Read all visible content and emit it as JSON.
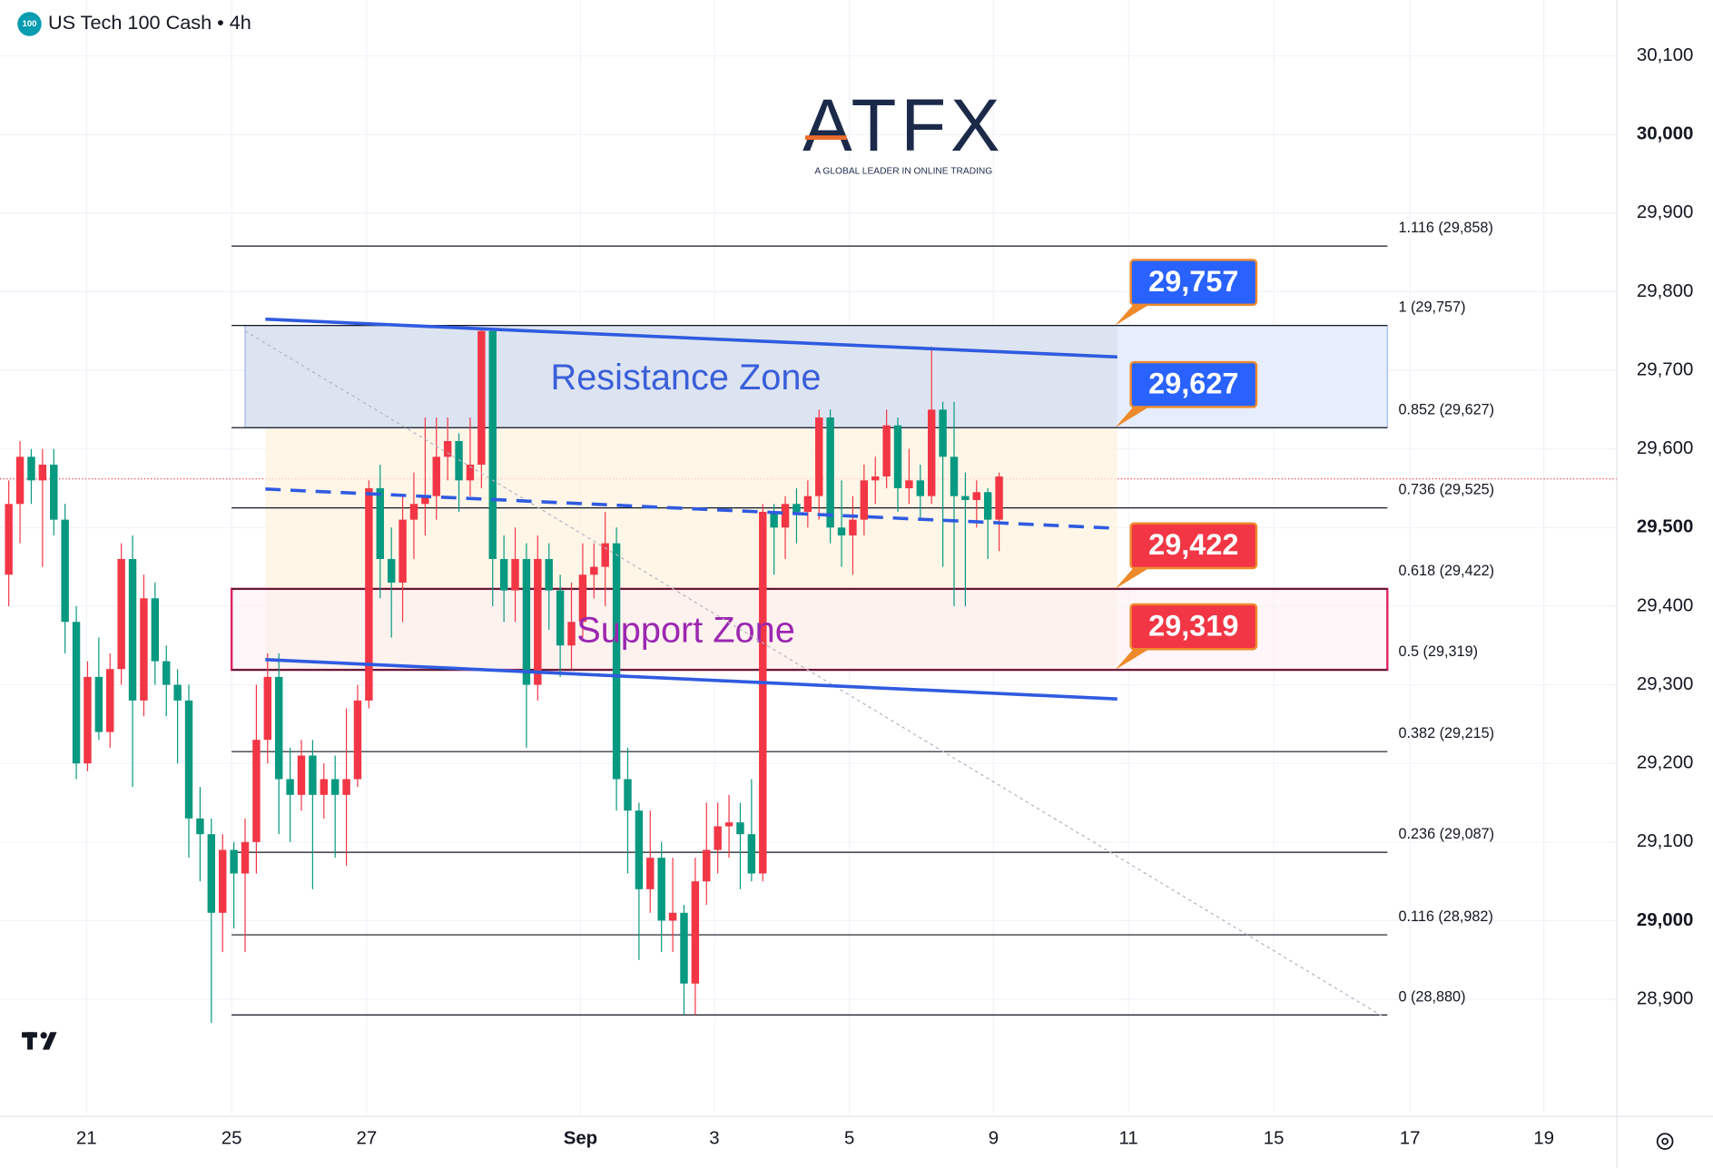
{
  "header": {
    "icon": "100",
    "title": "US Tech 100 Cash • 4h"
  },
  "logo": {
    "brand": "ATFX",
    "tagline": "A GLOBAL LEADER IN ONLINE TRADING"
  },
  "chart_data": {
    "type": "candlestick",
    "up_color": "#f23645",
    "down_color": "#089981",
    "grid": true,
    "open": [
      29440,
      29530,
      29590,
      29560,
      29580,
      29510,
      29380,
      29200,
      29310,
      29240,
      29320,
      29460,
      29280,
      29410,
      29330,
      29300,
      29280,
      29130,
      29110,
      29010,
      29090,
      29060,
      29100,
      29230,
      29310,
      29180,
      29160,
      29210,
      29160,
      29180,
      29160,
      29180,
      29280,
      29550,
      29460,
      29430,
      29510,
      29530,
      29540,
      29590,
      29610,
      29560,
      29580,
      29750,
      29460,
      29420,
      29460,
      29300,
      29460,
      29420,
      29350,
      29380,
      29440,
      29450,
      29480,
      29180,
      29140,
      29040,
      29080,
      29000,
      29010,
      28920,
      29050,
      29090,
      29120,
      29125,
      29110,
      29060,
      29520,
      29500,
      29530,
      29520,
      29540,
      29640,
      29500,
      29490,
      29510,
      29560,
      29565,
      29630,
      29550,
      29560,
      29540,
      29650,
      29590,
      29540,
      29535,
      29545,
      29510
    ],
    "high": [
      29560,
      29610,
      29600,
      29600,
      29600,
      29530,
      29400,
      29330,
      29360,
      29340,
      29480,
      29490,
      29440,
      29430,
      29350,
      29320,
      29300,
      29170,
      29130,
      29110,
      29100,
      29130,
      29300,
      29340,
      29340,
      29220,
      29230,
      29230,
      29200,
      29210,
      29270,
      29300,
      29560,
      29580,
      29500,
      29540,
      29570,
      29640,
      29640,
      29640,
      29620,
      29640,
      29755,
      29750,
      29490,
      29500,
      29480,
      29490,
      29480,
      29440,
      29430,
      29480,
      29480,
      29520,
      29500,
      29220,
      29150,
      29140,
      29100,
      29080,
      29020,
      29080,
      29150,
      29150,
      29160,
      29150,
      29180,
      29530,
      29530,
      29540,
      29550,
      29560,
      29650,
      29650,
      29560,
      29540,
      29580,
      29590,
      29650,
      29640,
      29600,
      29580,
      29730,
      29660,
      29660,
      29570,
      29560,
      29550,
      29570
    ],
    "low": [
      29400,
      29480,
      29530,
      29450,
      29490,
      29340,
      29180,
      29190,
      29230,
      29220,
      29300,
      29170,
      29260,
      29300,
      29260,
      29200,
      29080,
      29050,
      28870,
      28960,
      28990,
      28960,
      29060,
      29200,
      29110,
      29100,
      29140,
      29040,
      29130,
      29080,
      29070,
      29170,
      29270,
      29410,
      29360,
      29380,
      29460,
      29490,
      29510,
      29560,
      29520,
      29540,
      29550,
      29400,
      29380,
      29380,
      29220,
      29280,
      29370,
      29310,
      29320,
      29360,
      29410,
      29400,
      29140,
      29060,
      28950,
      29010,
      28960,
      28960,
      28880,
      28880,
      29020,
      29060,
      29080,
      29040,
      29050,
      29050,
      29440,
      29460,
      29480,
      29500,
      29510,
      29480,
      29450,
      29440,
      29490,
      29530,
      29550,
      29520,
      29530,
      29510,
      29530,
      29450,
      29400,
      29400,
      29500,
      29460,
      29470
    ],
    "close": [
      29530,
      29590,
      29560,
      29580,
      29510,
      29380,
      29200,
      29310,
      29240,
      29320,
      29460,
      29280,
      29410,
      29330,
      29300,
      29280,
      29130,
      29110,
      29010,
      29090,
      29060,
      29100,
      29230,
      29310,
      29180,
      29160,
      29210,
      29160,
      29180,
      29160,
      29180,
      29280,
      29550,
      29460,
      29430,
      29510,
      29530,
      29540,
      29590,
      29610,
      29560,
      29580,
      29750,
      29460,
      29420,
      29460,
      29300,
      29460,
      29420,
      29350,
      29380,
      29440,
      29450,
      29480,
      29180,
      29140,
      29040,
      29080,
      29000,
      29010,
      28920,
      29050,
      29090,
      29120,
      29125,
      29110,
      29060,
      29520,
      29500,
      29530,
      29520,
      29540,
      29640,
      29500,
      29490,
      29510,
      29560,
      29565,
      29630,
      29550,
      29560,
      29540,
      29650,
      29590,
      29540,
      29535,
      29545,
      29510,
      29565
    ],
    "xlim": [
      -0.78,
      142.9
    ],
    "xticks": [
      {
        "value": 6.9,
        "label": "21"
      },
      {
        "value": 19.8,
        "label": "25"
      },
      {
        "value": 31.8,
        "label": "27"
      },
      {
        "value": 50.8,
        "label": "Sep"
      },
      {
        "value": 62.7,
        "label": "3"
      },
      {
        "value": 74.7,
        "label": "5"
      },
      {
        "value": 87.5,
        "label": "9"
      },
      {
        "value": 99.5,
        "label": "11"
      },
      {
        "value": 112.4,
        "label": "15"
      },
      {
        "value": 124.5,
        "label": "17"
      },
      {
        "value": 136.4,
        "label": "19"
      }
    ],
    "ylim": [
      28754,
      30171
    ],
    "yticks": [
      {
        "value": 30100,
        "label": "30,100"
      },
      {
        "value": 30000,
        "label": "30,000"
      },
      {
        "value": 29900,
        "label": "29,900"
      },
      {
        "value": 29800,
        "label": "29,800"
      },
      {
        "value": 29700,
        "label": "29,700"
      },
      {
        "value": 29600,
        "label": "29,600"
      },
      {
        "value": 29500,
        "label": "29,500"
      },
      {
        "value": 29400,
        "label": "29,400"
      },
      {
        "value": 29300,
        "label": "29,300"
      },
      {
        "value": 29200,
        "label": "29,200"
      },
      {
        "value": 29100,
        "label": "29,100"
      },
      {
        "value": 29000,
        "label": "29,000"
      },
      {
        "value": 28900,
        "label": "28,900"
      }
    ],
    "last_price": 29562,
    "fib_levels": [
      {
        "value": 29858,
        "label": "1.116 (29,858)"
      },
      {
        "value": 29757,
        "label": "1 (29,757)"
      },
      {
        "value": 29627,
        "label": "0.852 (29,627)"
      },
      {
        "value": 29525,
        "label": "0.736 (29,525)"
      },
      {
        "value": 29422,
        "label": "0.618 (29,422)"
      },
      {
        "value": 29319,
        "label": "0.5 (29,319)"
      },
      {
        "value": 29215,
        "label": "0.382 (29,215)"
      },
      {
        "value": 29087,
        "label": "0.236 (29,087)"
      },
      {
        "value": 28982,
        "label": "0.116 (28,982)"
      },
      {
        "value": 28880,
        "label": "0 (28,880)"
      }
    ],
    "fib_range": [
      19.8,
      122.5
    ],
    "zones": [
      {
        "name": "Resistance Zone",
        "color": "#3a5fd9",
        "range": [
          29627,
          29757
        ],
        "x": [
          21,
          122.5
        ]
      },
      {
        "name": "Support Zone",
        "color": "#9c27b0",
        "range": [
          29319,
          29422
        ],
        "x": [
          19.8,
          122.5
        ]
      }
    ],
    "price_tags": [
      {
        "value": 29757,
        "label": "29,757",
        "color": "#2962ff"
      },
      {
        "value": 29627,
        "label": "29,627",
        "color": "#2962ff"
      },
      {
        "value": 29422,
        "label": "29,422",
        "color": "#f23645"
      },
      {
        "value": 29319,
        "label": "29,319",
        "color": "#f23645"
      }
    ],
    "trend_lines": [
      {
        "x": [
          22.8,
          98.5
        ],
        "y": [
          29765,
          29717
        ],
        "style": "solid"
      },
      {
        "x": [
          22.8,
          98.5
        ],
        "y": [
          29332,
          29282
        ],
        "style": "solid"
      },
      {
        "x": [
          22.8,
          98.5
        ],
        "y": [
          29549,
          29499
        ],
        "style": "dashed"
      }
    ],
    "diagonal": {
      "x": [
        21,
        122
      ],
      "y": [
        29750,
        28879
      ]
    }
  }
}
